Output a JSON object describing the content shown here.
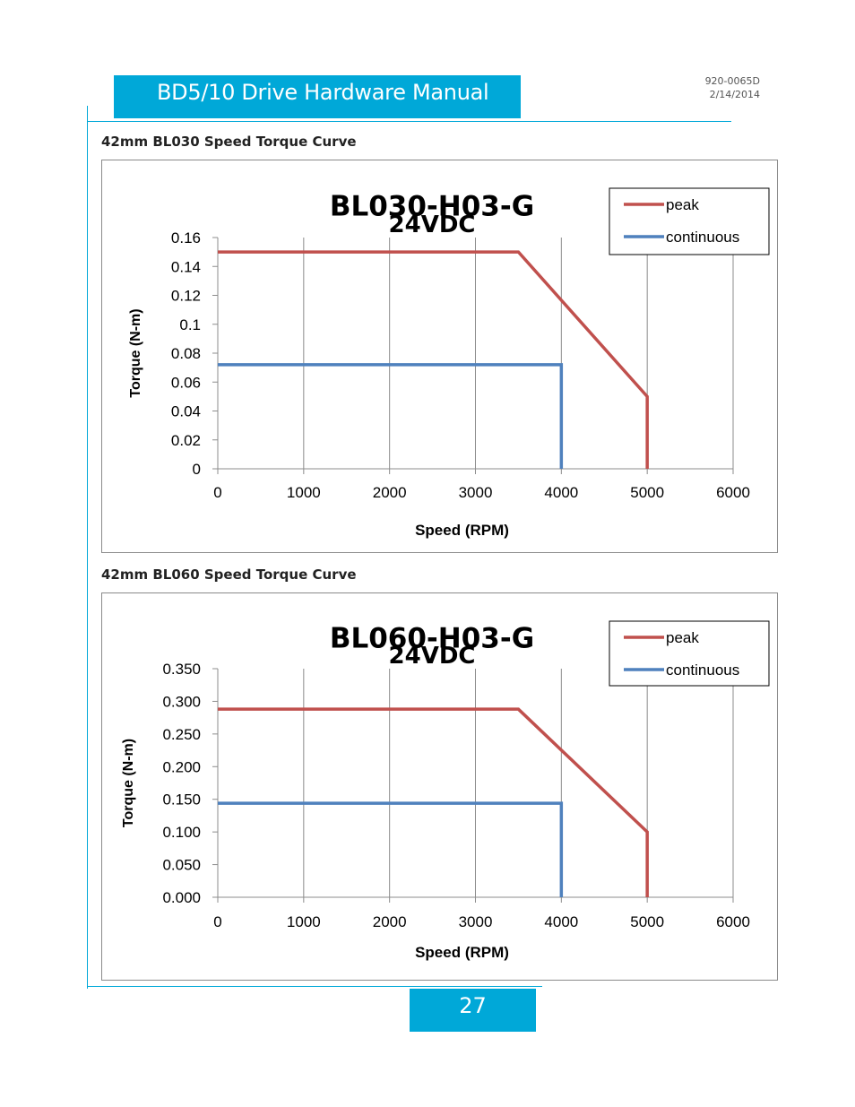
{
  "header": {
    "title": "BD5/10 Drive Hardware Manual",
    "doc_number": "920-0065D",
    "date": "2/14/2014"
  },
  "sections": [
    {
      "title": "42mm BL030 Speed Torque Curve"
    },
    {
      "title": "42mm BL060 Speed Torque Curve"
    }
  ],
  "footer": {
    "page_number": "27"
  },
  "chart_data": [
    {
      "type": "line",
      "title": "BL030-H03-G",
      "subtitle": "24VDC",
      "xlabel": "Speed (RPM)",
      "ylabel": "Torque (N-m)",
      "xlim": [
        0,
        6000
      ],
      "ylim": [
        0,
        0.16
      ],
      "xticks": [
        0,
        1000,
        2000,
        3000,
        4000,
        5000,
        6000
      ],
      "xtick_labels": [
        "0",
        "1000",
        "2000",
        "3000",
        "4000",
        "5000",
        "6000"
      ],
      "yticks": [
        0,
        0.02,
        0.04,
        0.06,
        0.08,
        0.1,
        0.12,
        0.14,
        0.16
      ],
      "ytick_labels": [
        "0",
        "0.02",
        "0.04",
        "0.06",
        "0.08",
        "0.1",
        "0.12",
        "0.14",
        "0.16"
      ],
      "grid": "vertical",
      "legend": "top-right",
      "series": [
        {
          "name": "peak",
          "color": "#c0504d",
          "x": [
            0,
            3500,
            5000,
            5000
          ],
          "y": [
            0.15,
            0.15,
            0.05,
            0
          ]
        },
        {
          "name": "continuous",
          "color": "#4f81bd",
          "x": [
            0,
            4000,
            4000
          ],
          "y": [
            0.072,
            0.072,
            0
          ]
        }
      ]
    },
    {
      "type": "line",
      "title": "BL060-H03-G",
      "subtitle": "24VDC",
      "xlabel": "Speed (RPM)",
      "ylabel": "Torque (N-m)",
      "xlim": [
        0,
        6000
      ],
      "ylim": [
        0,
        0.35
      ],
      "xticks": [
        0,
        1000,
        2000,
        3000,
        4000,
        5000,
        6000
      ],
      "xtick_labels": [
        "0",
        "1000",
        "2000",
        "3000",
        "4000",
        "5000",
        "6000"
      ],
      "yticks": [
        0,
        0.05,
        0.1,
        0.15,
        0.2,
        0.25,
        0.3,
        0.35
      ],
      "ytick_labels": [
        "0.000",
        "0.050",
        "0.100",
        "0.150",
        "0.200",
        "0.250",
        "0.300",
        "0.350"
      ],
      "grid": "vertical",
      "legend": "top-right",
      "series": [
        {
          "name": "peak",
          "color": "#c0504d",
          "x": [
            0,
            3500,
            5000,
            5000
          ],
          "y": [
            0.288,
            0.288,
            0.1,
            0
          ]
        },
        {
          "name": "continuous",
          "color": "#4f81bd",
          "x": [
            0,
            4000,
            4000
          ],
          "y": [
            0.144,
            0.144,
            0
          ]
        }
      ]
    }
  ]
}
